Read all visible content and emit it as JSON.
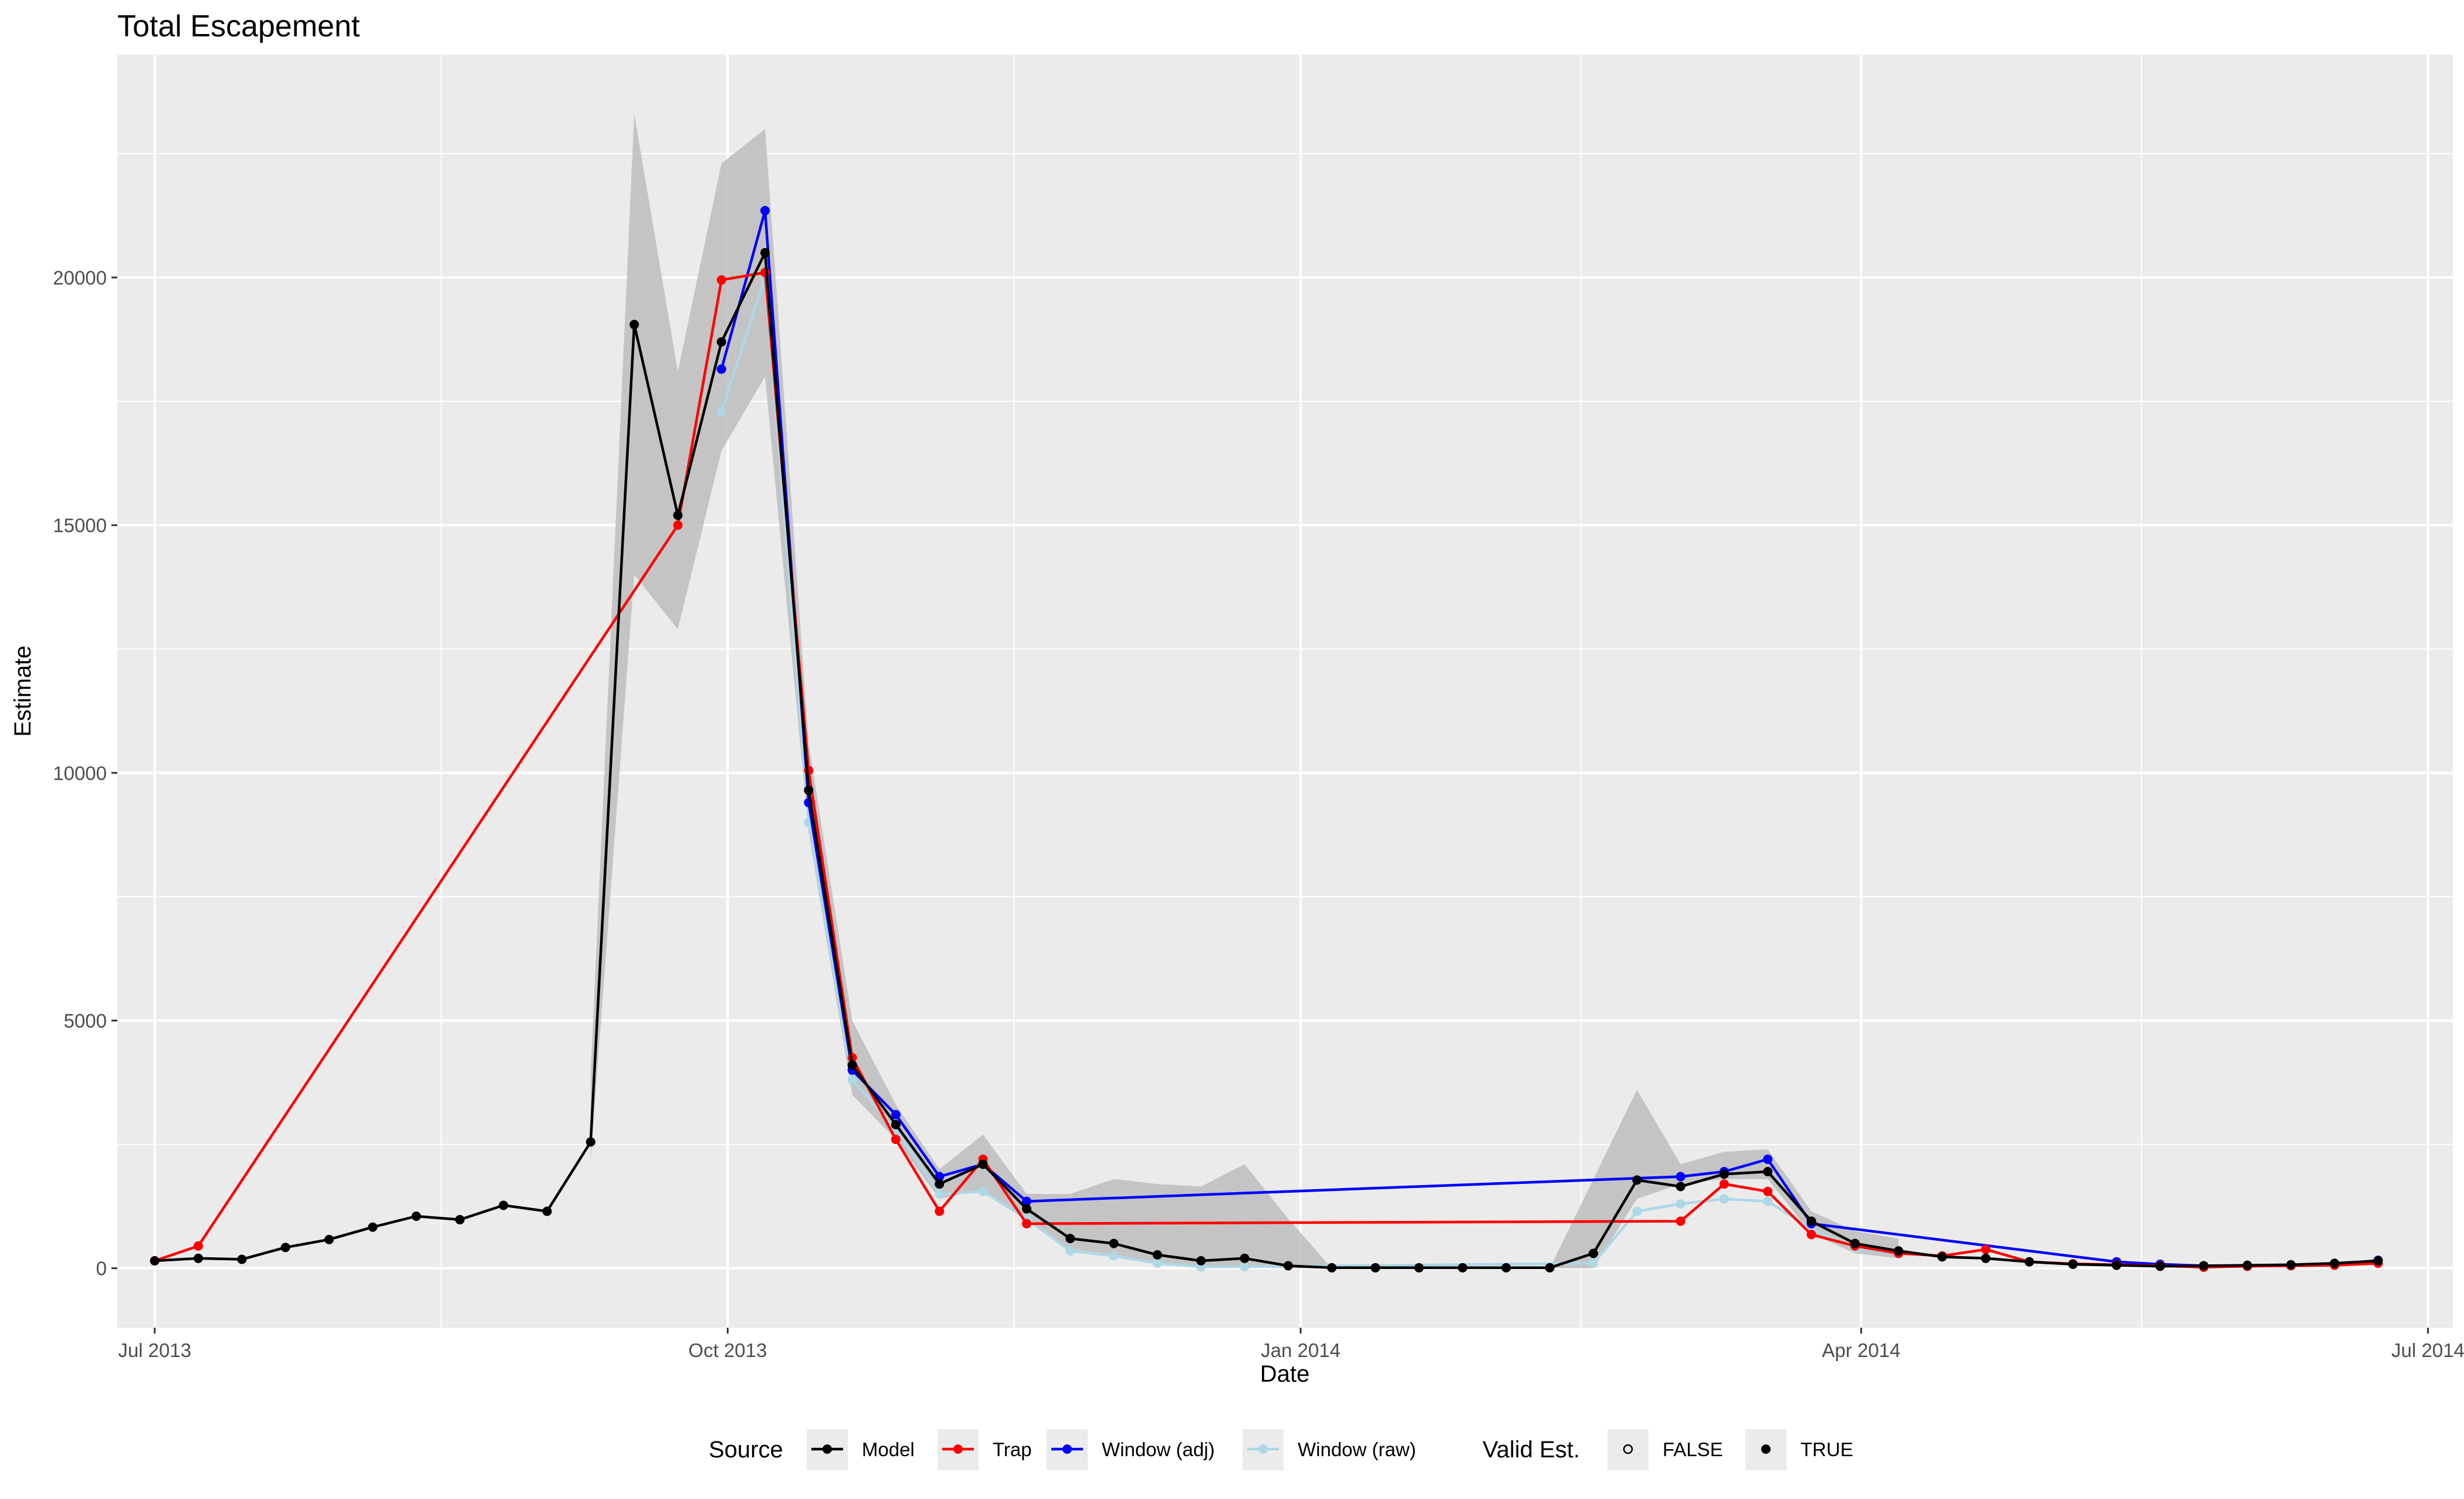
{
  "chart_data": {
    "type": "line",
    "title": "Total Escapement",
    "xlabel": "Date",
    "ylabel": "Estimate",
    "x_type": "date",
    "xlim": [
      "2013-06-25",
      "2014-07-05"
    ],
    "ylim": [
      -1200,
      24500
    ],
    "grid": true,
    "legend_placement": "bottom",
    "x_ticks": [
      {
        "date": "2013-07-01",
        "label": "Jul 2013"
      },
      {
        "date": "2013-10-01",
        "label": "Oct 2013"
      },
      {
        "date": "2014-01-01",
        "label": "Jan 2014"
      },
      {
        "date": "2014-04-01",
        "label": "Apr 2014"
      },
      {
        "date": "2014-07-01",
        "label": "Jul 2014"
      }
    ],
    "x_minor_ticks": [
      "2013-08-16",
      "2013-11-16",
      "2014-02-15",
      "2014-05-16"
    ],
    "y_ticks": [
      0,
      5000,
      10000,
      15000,
      20000
    ],
    "y_minor_ticks": [
      2500,
      7500,
      12500,
      17500,
      22500
    ],
    "y_tick_labels": [
      "0",
      "5000",
      "10000",
      "15000",
      "20000"
    ],
    "legends": {
      "source": {
        "title": "Source",
        "entries": [
          "Model",
          "Trap",
          "Window (adj)",
          "Window (raw)"
        ]
      },
      "valid": {
        "title": "Valid Est.",
        "entries": [
          "FALSE",
          "TRUE"
        ]
      }
    },
    "ribbon": {
      "name": "Model interval",
      "color": "#bdbdbd",
      "x": [
        "2013-09-09",
        "2013-09-16",
        "2013-09-23",
        "2013-09-30",
        "2013-10-07",
        "2013-10-14",
        "2013-10-21",
        "2013-10-28",
        "2013-11-04",
        "2013-11-11",
        "2013-11-18",
        "2013-11-25",
        "2013-12-02",
        "2013-12-09",
        "2013-12-16",
        "2013-12-23",
        "2013-12-30",
        "2014-01-06",
        "2014-02-10",
        "2014-02-17",
        "2014-02-24",
        "2014-03-03",
        "2014-03-10",
        "2014-03-17",
        "2014-03-24",
        "2014-03-31",
        "2014-04-07"
      ],
      "lower": [
        2200,
        14000,
        12900,
        16500,
        18000,
        8800,
        3500,
        2600,
        1400,
        1600,
        950,
        380,
        280,
        120,
        30,
        20,
        0,
        0,
        0,
        0,
        1400,
        1700,
        1800,
        1800,
        700,
        300,
        200
      ],
      "upper": [
        3900,
        23300,
        18100,
        22300,
        23000,
        10600,
        5000,
        3300,
        2000,
        2700,
        1500,
        1500,
        1800,
        1700,
        1650,
        2100,
        1000,
        0,
        0,
        1800,
        3600,
        2100,
        2350,
        2400,
        1150,
        750,
        600
      ]
    },
    "series": [
      {
        "name": "Window (raw)",
        "color": "#add8e6",
        "x": [
          "2013-09-30",
          "2013-10-07",
          "2013-10-14",
          "2013-10-21",
          "2013-10-28",
          "2013-11-04",
          "2013-11-11",
          "2013-11-18",
          "2013-11-25",
          "2013-12-02",
          "2013-12-09",
          "2013-12-16",
          "2013-12-23",
          "2014-02-17",
          "2014-02-24",
          "2014-03-03",
          "2014-03-10",
          "2014-03-17",
          "2014-03-24",
          "2014-03-31",
          "2014-04-07"
        ],
        "values": [
          17300,
          20000,
          9000,
          3800,
          2800,
          1500,
          1550,
          1000,
          350,
          250,
          100,
          30,
          30,
          100,
          1150,
          1300,
          1400,
          1350,
          800,
          400,
          300
        ]
      },
      {
        "name": "Window (adj)",
        "color": "#0000ff",
        "x": [
          "2013-09-30",
          "2013-10-07",
          "2013-10-14",
          "2013-10-21",
          "2013-10-28",
          "2013-11-04",
          "2013-11-11",
          "2013-11-18",
          "2014-03-03",
          "2014-03-10",
          "2014-03-17",
          "2014-03-24",
          "2014-05-12",
          "2014-05-19",
          "2014-05-26",
          "2014-06-02",
          "2014-06-09",
          "2014-06-16",
          "2014-06-23"
        ],
        "values": [
          18150,
          21350,
          9400,
          4000,
          3100,
          1850,
          2100,
          1350,
          1850,
          1950,
          2200,
          900,
          130,
          80,
          50,
          40,
          60,
          70,
          160
        ]
      },
      {
        "name": "Trap",
        "color": "#ff0000",
        "x": [
          "2013-07-01",
          "2013-07-08",
          "2013-09-23",
          "2013-09-30",
          "2013-10-07",
          "2013-10-14",
          "2013-10-21",
          "2013-10-28",
          "2013-11-04",
          "2013-11-11",
          "2013-11-18",
          "2014-03-03",
          "2014-03-10",
          "2014-03-17",
          "2014-03-24",
          "2014-03-31",
          "2014-04-07",
          "2014-04-14",
          "2014-04-21",
          "2014-04-28",
          "2014-05-05",
          "2014-05-12",
          "2014-05-19",
          "2014-05-26",
          "2014-06-02",
          "2014-06-09",
          "2014-06-16",
          "2014-06-23"
        ],
        "values": [
          150,
          450,
          15000,
          19950,
          20100,
          10050,
          4250,
          2600,
          1150,
          2200,
          900,
          950,
          1700,
          1550,
          680,
          450,
          300,
          250,
          380,
          130,
          90,
          70,
          50,
          20,
          40,
          50,
          60,
          100
        ]
      },
      {
        "name": "Model",
        "color": "#000000",
        "x": [
          "2013-07-01",
          "2013-07-08",
          "2013-07-15",
          "2013-07-22",
          "2013-07-29",
          "2013-08-05",
          "2013-08-12",
          "2013-08-19",
          "2013-08-26",
          "2013-09-02",
          "2013-09-09",
          "2013-09-16",
          "2013-09-23",
          "2013-09-30",
          "2013-10-07",
          "2013-10-14",
          "2013-10-21",
          "2013-10-28",
          "2013-11-04",
          "2013-11-11",
          "2013-11-18",
          "2013-11-25",
          "2013-12-02",
          "2013-12-09",
          "2013-12-16",
          "2013-12-23",
          "2013-12-30",
          "2014-01-06",
          "2014-01-13",
          "2014-01-20",
          "2014-01-27",
          "2014-02-03",
          "2014-02-10",
          "2014-02-17",
          "2014-02-24",
          "2014-03-03",
          "2014-03-10",
          "2014-03-17",
          "2014-03-24",
          "2014-03-31",
          "2014-04-07",
          "2014-04-14",
          "2014-04-21",
          "2014-04-28",
          "2014-05-05",
          "2014-05-12",
          "2014-05-19",
          "2014-05-26",
          "2014-06-02",
          "2014-06-09",
          "2014-06-16",
          "2014-06-23"
        ],
        "values": [
          150,
          200,
          180,
          420,
          580,
          830,
          1050,
          980,
          1270,
          1150,
          2550,
          19050,
          15200,
          18700,
          20500,
          9650,
          4100,
          2900,
          1700,
          2100,
          1200,
          600,
          500,
          270,
          150,
          200,
          50,
          10,
          10,
          10,
          10,
          10,
          10,
          300,
          1780,
          1650,
          1900,
          1950,
          950,
          500,
          350,
          230,
          200,
          130,
          80,
          60,
          40,
          50,
          60,
          70,
          100,
          150
        ]
      }
    ]
  }
}
